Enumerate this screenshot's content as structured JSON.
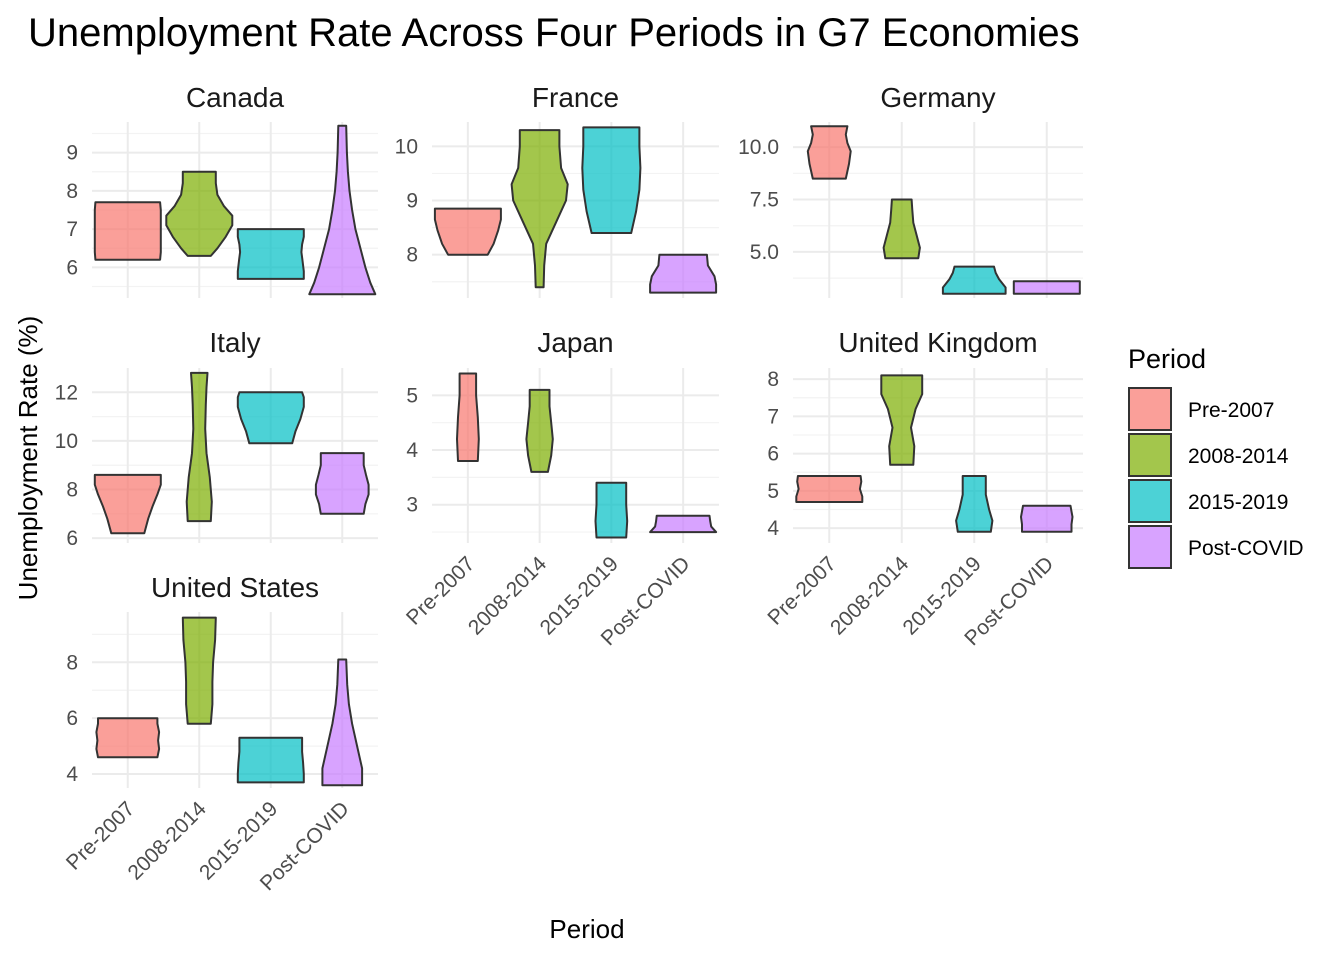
{
  "chart_data": {
    "type": "violin",
    "title": "Unemployment Rate Across Four Periods in G7 Economies",
    "xlabel": "Period",
    "ylabel": "Unemployment Rate (%)",
    "categories": [
      "Pre-2007",
      "2008-2014",
      "2015-2019",
      "Post-COVID"
    ],
    "legend": {
      "title": "Period",
      "position": "right",
      "items": [
        {
          "label": "Pre-2007",
          "color": "#F8766D"
        },
        {
          "label": "2008-2014",
          "color": "#7CAE00"
        },
        {
          "label": "2015-2019",
          "color": "#00BFC4"
        },
        {
          "label": "Post-COVID",
          "color": "#C77CFF"
        }
      ]
    },
    "facets": [
      {
        "name": "Canada",
        "ylim": [
          5.2,
          9.8
        ],
        "yticks": [
          "6",
          "7",
          "8",
          "9"
        ],
        "ytick_values": [
          6,
          7,
          8,
          9
        ],
        "violins": [
          {
            "period": "Pre-2007",
            "min": 6.2,
            "max": 7.7,
            "profile": [
              [
                6.2,
                0.98
              ],
              [
                6.4,
                1
              ],
              [
                6.7,
                1
              ],
              [
                7.0,
                1
              ],
              [
                7.3,
                1
              ],
              [
                7.5,
                1
              ],
              [
                7.7,
                0.98
              ]
            ]
          },
          {
            "period": "2008-2014",
            "min": 6.3,
            "max": 8.5,
            "profile": [
              [
                6.3,
                0.35
              ],
              [
                6.5,
                0.55
              ],
              [
                6.8,
                0.8
              ],
              [
                7.1,
                1
              ],
              [
                7.35,
                1
              ],
              [
                7.6,
                0.75
              ],
              [
                7.9,
                0.55
              ],
              [
                8.2,
                0.5
              ],
              [
                8.5,
                0.5
              ]
            ]
          },
          {
            "period": "2015-2019",
            "min": 5.7,
            "max": 7.0,
            "profile": [
              [
                5.7,
                1
              ],
              [
                5.9,
                1
              ],
              [
                6.2,
                0.96
              ],
              [
                6.4,
                0.93
              ],
              [
                6.6,
                0.95
              ],
              [
                6.8,
                1
              ],
              [
                7.0,
                1
              ]
            ]
          },
          {
            "period": "Post-COVID",
            "min": 5.3,
            "max": 9.7,
            "profile": [
              [
                5.3,
                1
              ],
              [
                5.6,
                0.85
              ],
              [
                6.0,
                0.7
              ],
              [
                6.5,
                0.55
              ],
              [
                7.0,
                0.4
              ],
              [
                7.5,
                0.3
              ],
              [
                8.0,
                0.22
              ],
              [
                8.5,
                0.17
              ],
              [
                9.0,
                0.14
              ],
              [
                9.4,
                0.13
              ],
              [
                9.7,
                0.12
              ]
            ]
          }
        ]
      },
      {
        "name": "France",
        "ylim": [
          7.2,
          10.45
        ],
        "yticks": [
          "8",
          "9",
          "10"
        ],
        "ytick_values": [
          8,
          9,
          10
        ],
        "violins": [
          {
            "period": "Pre-2007",
            "min": 8.0,
            "max": 8.85,
            "profile": [
              [
                8.0,
                0.6
              ],
              [
                8.2,
                0.78
              ],
              [
                8.45,
                0.92
              ],
              [
                8.65,
                1
              ],
              [
                8.85,
                1
              ]
            ]
          },
          {
            "period": "2008-2014",
            "min": 7.4,
            "max": 10.3,
            "profile": [
              [
                7.4,
                0.12
              ],
              [
                7.8,
                0.14
              ],
              [
                8.2,
                0.2
              ],
              [
                8.6,
                0.5
              ],
              [
                9.0,
                0.8
              ],
              [
                9.3,
                0.85
              ],
              [
                9.6,
                0.65
              ],
              [
                10.0,
                0.6
              ],
              [
                10.3,
                0.6
              ]
            ]
          },
          {
            "period": "2015-2019",
            "min": 8.4,
            "max": 10.35,
            "profile": [
              [
                8.4,
                0.6
              ],
              [
                8.8,
                0.75
              ],
              [
                9.2,
                0.85
              ],
              [
                9.6,
                0.88
              ],
              [
                10.0,
                0.85
              ],
              [
                10.35,
                0.85
              ]
            ]
          },
          {
            "period": "Post-COVID",
            "min": 7.3,
            "max": 8.0,
            "profile": [
              [
                7.3,
                1
              ],
              [
                7.45,
                1
              ],
              [
                7.6,
                0.95
              ],
              [
                7.8,
                0.75
              ],
              [
                8.0,
                0.72
              ]
            ]
          }
        ]
      },
      {
        "name": "Germany",
        "ylim": [
          2.8,
          11.2
        ],
        "yticks": [
          "5.0",
          "7.5",
          "10.0"
        ],
        "ytick_values": [
          5,
          7.5,
          10
        ],
        "violins": [
          {
            "period": "Pre-2007",
            "min": 8.5,
            "max": 11.0,
            "profile": [
              [
                8.5,
                0.5
              ],
              [
                9.2,
                0.6
              ],
              [
                9.8,
                0.65
              ],
              [
                10.2,
                0.55
              ],
              [
                10.6,
                0.5
              ],
              [
                11.0,
                0.55
              ]
            ]
          },
          {
            "period": "2008-2014",
            "min": 4.7,
            "max": 7.5,
            "profile": [
              [
                4.7,
                0.5
              ],
              [
                5.2,
                0.55
              ],
              [
                5.8,
                0.45
              ],
              [
                6.4,
                0.35
              ],
              [
                7.0,
                0.32
              ],
              [
                7.5,
                0.3
              ]
            ]
          },
          {
            "period": "2015-2019",
            "min": 3.0,
            "max": 4.3,
            "profile": [
              [
                3.0,
                0.95
              ],
              [
                3.3,
                0.95
              ],
              [
                3.7,
                0.75
              ],
              [
                4.0,
                0.65
              ],
              [
                4.3,
                0.6
              ]
            ]
          },
          {
            "period": "Post-COVID",
            "min": 3.0,
            "max": 3.6,
            "profile": [
              [
                3.0,
                1
              ],
              [
                3.2,
                1
              ],
              [
                3.35,
                1
              ],
              [
                3.5,
                1
              ],
              [
                3.6,
                1
              ]
            ]
          }
        ]
      },
      {
        "name": "Italy",
        "ylim": [
          5.8,
          13.0
        ],
        "yticks": [
          "6",
          "8",
          "10",
          "12"
        ],
        "ytick_values": [
          6,
          8,
          10,
          12
        ],
        "violins": [
          {
            "period": "Pre-2007",
            "min": 6.2,
            "max": 8.6,
            "profile": [
              [
                6.2,
                0.5
              ],
              [
                6.8,
                0.62
              ],
              [
                7.3,
                0.75
              ],
              [
                7.8,
                0.9
              ],
              [
                8.2,
                1
              ],
              [
                8.6,
                1
              ]
            ]
          },
          {
            "period": "2008-2014",
            "min": 6.7,
            "max": 12.8,
            "profile": [
              [
                6.7,
                0.35
              ],
              [
                7.5,
                0.38
              ],
              [
                8.5,
                0.32
              ],
              [
                9.5,
                0.22
              ],
              [
                10.5,
                0.18
              ],
              [
                11.5,
                0.2
              ],
              [
                12.2,
                0.22
              ],
              [
                12.8,
                0.25
              ]
            ]
          },
          {
            "period": "2015-2019",
            "min": 9.9,
            "max": 12.0,
            "profile": [
              [
                9.9,
                0.65
              ],
              [
                10.4,
                0.75
              ],
              [
                10.9,
                0.9
              ],
              [
                11.4,
                1
              ],
              [
                11.8,
                1
              ],
              [
                12.0,
                0.95
              ]
            ]
          },
          {
            "period": "Post-COVID",
            "min": 7.0,
            "max": 9.5,
            "profile": [
              [
                7.0,
                0.65
              ],
              [
                7.4,
                0.7
              ],
              [
                7.8,
                0.8
              ],
              [
                8.2,
                0.8
              ],
              [
                8.6,
                0.72
              ],
              [
                9.0,
                0.65
              ],
              [
                9.5,
                0.65
              ]
            ]
          }
        ]
      },
      {
        "name": "Japan",
        "ylim": [
          2.3,
          5.5
        ],
        "yticks": [
          "3",
          "4",
          "5"
        ],
        "ytick_values": [
          3,
          4,
          5
        ],
        "violins": [
          {
            "period": "Pre-2007",
            "min": 3.8,
            "max": 5.4,
            "profile": [
              [
                3.8,
                0.3
              ],
              [
                4.2,
                0.33
              ],
              [
                4.6,
                0.3
              ],
              [
                5.0,
                0.25
              ],
              [
                5.4,
                0.25
              ]
            ]
          },
          {
            "period": "2008-2014",
            "min": 3.6,
            "max": 5.1,
            "profile": [
              [
                3.6,
                0.25
              ],
              [
                3.9,
                0.35
              ],
              [
                4.2,
                0.4
              ],
              [
                4.5,
                0.35
              ],
              [
                4.8,
                0.3
              ],
              [
                5.1,
                0.3
              ]
            ]
          },
          {
            "period": "2015-2019",
            "min": 2.4,
            "max": 3.4,
            "profile": [
              [
                2.4,
                0.45
              ],
              [
                2.7,
                0.48
              ],
              [
                3.0,
                0.45
              ],
              [
                3.2,
                0.45
              ],
              [
                3.4,
                0.45
              ]
            ]
          },
          {
            "period": "Post-COVID",
            "min": 2.5,
            "max": 2.8,
            "profile": [
              [
                2.5,
                1
              ],
              [
                2.6,
                0.85
              ],
              [
                2.7,
                0.82
              ],
              [
                2.8,
                0.8
              ]
            ]
          }
        ]
      },
      {
        "name": "United Kingdom",
        "ylim": [
          3.6,
          8.3
        ],
        "yticks": [
          "4",
          "5",
          "6",
          "7",
          "8"
        ],
        "ytick_values": [
          4,
          5,
          6,
          7,
          8
        ],
        "violins": [
          {
            "period": "Pre-2007",
            "min": 4.7,
            "max": 5.4,
            "profile": [
              [
                4.7,
                1
              ],
              [
                4.85,
                1
              ],
              [
                5.05,
                0.93
              ],
              [
                5.25,
                0.97
              ],
              [
                5.4,
                0.95
              ]
            ]
          },
          {
            "period": "2008-2014",
            "min": 5.7,
            "max": 8.1,
            "profile": [
              [
                5.7,
                0.35
              ],
              [
                6.2,
                0.38
              ],
              [
                6.7,
                0.28
              ],
              [
                7.2,
                0.42
              ],
              [
                7.6,
                0.62
              ],
              [
                8.1,
                0.62
              ]
            ]
          },
          {
            "period": "2015-2019",
            "min": 3.9,
            "max": 5.4,
            "profile": [
              [
                3.9,
                0.5
              ],
              [
                4.2,
                0.55
              ],
              [
                4.5,
                0.45
              ],
              [
                4.9,
                0.35
              ],
              [
                5.4,
                0.35
              ]
            ]
          },
          {
            "period": "Post-COVID",
            "min": 3.9,
            "max": 4.6,
            "profile": [
              [
                3.9,
                0.75
              ],
              [
                4.1,
                0.75
              ],
              [
                4.3,
                0.78
              ],
              [
                4.45,
                0.75
              ],
              [
                4.6,
                0.72
              ]
            ]
          }
        ]
      },
      {
        "name": "United States",
        "ylim": [
          3.5,
          9.8
        ],
        "yticks": [
          "4",
          "6",
          "8"
        ],
        "ytick_values": [
          4,
          6,
          8
        ],
        "violins": [
          {
            "period": "Pre-2007",
            "min": 4.6,
            "max": 6.0,
            "profile": [
              [
                4.6,
                0.9
              ],
              [
                4.9,
                0.95
              ],
              [
                5.2,
                0.92
              ],
              [
                5.5,
                0.95
              ],
              [
                5.8,
                0.9
              ],
              [
                6.0,
                0.9
              ]
            ]
          },
          {
            "period": "2008-2014",
            "min": 5.8,
            "max": 9.6,
            "profile": [
              [
                5.8,
                0.35
              ],
              [
                6.5,
                0.4
              ],
              [
                7.3,
                0.4
              ],
              [
                8.0,
                0.42
              ],
              [
                8.8,
                0.48
              ],
              [
                9.6,
                0.5
              ]
            ]
          },
          {
            "period": "2015-2019",
            "min": 3.7,
            "max": 5.3,
            "profile": [
              [
                3.7,
                1
              ],
              [
                4.0,
                1
              ],
              [
                4.4,
                0.98
              ],
              [
                4.8,
                0.95
              ],
              [
                5.1,
                0.95
              ],
              [
                5.3,
                0.95
              ]
            ]
          },
          {
            "period": "Post-COVID",
            "min": 3.6,
            "max": 8.1,
            "profile": [
              [
                3.6,
                0.6
              ],
              [
                4.2,
                0.6
              ],
              [
                5.0,
                0.45
              ],
              [
                5.8,
                0.3
              ],
              [
                6.5,
                0.2
              ],
              [
                7.2,
                0.15
              ],
              [
                8.1,
                0.12
              ]
            ]
          }
        ]
      }
    ]
  }
}
